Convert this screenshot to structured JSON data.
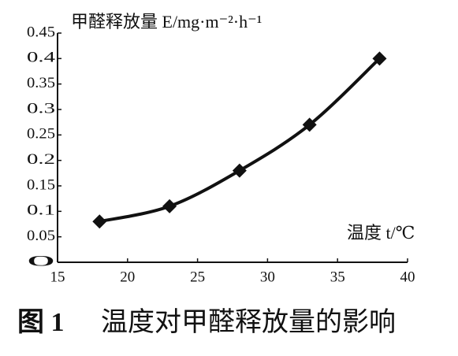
{
  "chart_data": {
    "type": "line",
    "y_label": "甲醛释放量 E/mg·m⁻²·h⁻¹",
    "x_label": "温度 t/℃",
    "caption_label": "图 1",
    "caption": "温度对甲醛释放量的影响",
    "x": [
      18,
      23,
      28,
      33,
      38
    ],
    "series": [
      {
        "name": "甲醛释放量",
        "color": "#111111",
        "values": [
          0.08,
          0.11,
          0.18,
          0.27,
          0.4
        ]
      }
    ],
    "xlim": [
      15,
      40
    ],
    "xticks": [
      15,
      20,
      25,
      30,
      35,
      40
    ],
    "ylim": [
      0,
      0.45
    ],
    "yticks": [
      0,
      0.05,
      0.1,
      0.15,
      0.2,
      0.25,
      0.3,
      0.35,
      0.4,
      0.45
    ],
    "grid": false
  }
}
